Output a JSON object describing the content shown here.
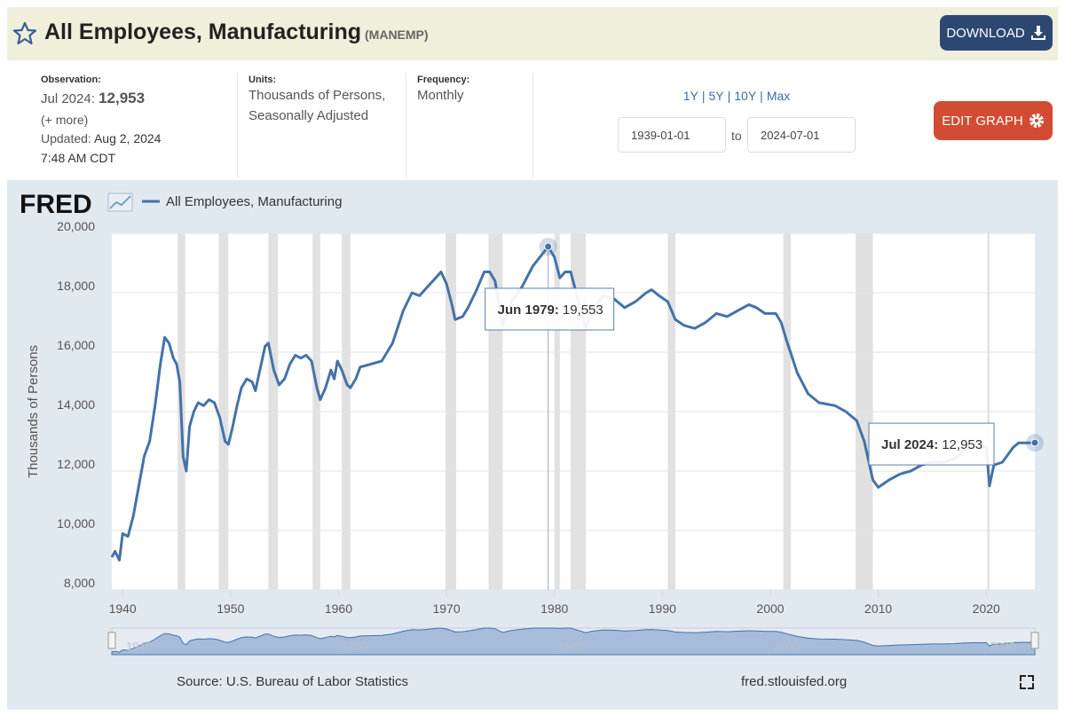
{
  "header": {
    "title": "All Employees, Manufacturing",
    "code": "(MANEMP)",
    "download": "DOWNLOAD"
  },
  "info": {
    "observation": {
      "label": "Observation:",
      "date": "Jul 2024:",
      "value": "12,953",
      "more": "(+ more)"
    },
    "updated": {
      "label": "Updated:",
      "date": "Aug 2, 2024",
      "time": "7:48 AM CDT"
    },
    "units": {
      "label": "Units:",
      "lines": [
        "Thousands of Persons,",
        "Seasonally Adjusted"
      ]
    },
    "frequency": {
      "label": "Frequency:",
      "value": "Monthly"
    }
  },
  "controls": {
    "ranges": [
      "1Y",
      "5Y",
      "10Y",
      "Max"
    ],
    "separator": "|",
    "start": "1939-01-01",
    "to": "to",
    "end": "2024-07-01",
    "edit": "EDIT GRAPH"
  },
  "footer": {
    "source": "Source: U.S. Bureau of Labor Statistics",
    "site": "fred.stlouisfed.org"
  },
  "chart_data": {
    "type": "line",
    "logo": "FRED",
    "y_label": "Thousands of Persons",
    "xlim": [
      1939,
      2024.5
    ],
    "xticks": [
      1940,
      1950,
      1960,
      1970,
      1980,
      1990,
      2000,
      2010,
      2020
    ],
    "ylim": [
      8000,
      20000
    ],
    "yticks": [
      {
        "value": 8000,
        "label": "8,000"
      },
      {
        "value": 10000,
        "label": "10,000"
      },
      {
        "value": 12000,
        "label": "12,000"
      },
      {
        "value": 14000,
        "label": "14,000"
      },
      {
        "value": 16000,
        "label": "16,000"
      },
      {
        "value": 18000,
        "label": "18,000"
      },
      {
        "value": 20000,
        "label": "20,000"
      }
    ],
    "grid": true,
    "recessions": [
      [
        1945.1,
        1945.8
      ],
      [
        1948.9,
        1949.8
      ],
      [
        1953.5,
        1954.4
      ],
      [
        1957.6,
        1958.3
      ],
      [
        1960.3,
        1961.1
      ],
      [
        1969.9,
        1970.9
      ],
      [
        1973.9,
        1975.2
      ],
      [
        1980.0,
        1980.5
      ],
      [
        1981.5,
        1982.9
      ],
      [
        1990.5,
        1991.2
      ],
      [
        2001.2,
        2001.9
      ],
      [
        2007.9,
        2009.5
      ],
      [
        2020.1,
        2020.3
      ]
    ],
    "x": [
      1939.0,
      1939.3,
      1939.7,
      1940.0,
      1940.5,
      1941.0,
      1941.5,
      1942.0,
      1942.5,
      1943.0,
      1943.5,
      1943.9,
      1944.3,
      1944.7,
      1945.0,
      1945.3,
      1945.6,
      1945.9,
      1946.2,
      1946.6,
      1947.0,
      1947.5,
      1948.0,
      1948.5,
      1949.0,
      1949.5,
      1949.8,
      1950.2,
      1950.6,
      1951.0,
      1951.5,
      1952.0,
      1952.3,
      1952.6,
      1953.2,
      1953.5,
      1954.0,
      1954.5,
      1955.0,
      1955.5,
      1956.0,
      1956.5,
      1957.0,
      1957.5,
      1958.0,
      1958.3,
      1958.8,
      1959.3,
      1959.6,
      1959.9,
      1960.3,
      1960.8,
      1961.1,
      1961.6,
      1962.0,
      1963.0,
      1964.0,
      1965.0,
      1966.0,
      1966.8,
      1967.5,
      1968.0,
      1969.0,
      1969.5,
      1970.0,
      1970.5,
      1970.8,
      1971.5,
      1972.0,
      1972.8,
      1973.5,
      1974.0,
      1974.5,
      1975.2,
      1976.0,
      1977.0,
      1978.0,
      1979.42,
      1980.0,
      1980.5,
      1981.0,
      1981.5,
      1982.9,
      1983.5,
      1984.5,
      1985.5,
      1986.5,
      1987.5,
      1988.5,
      1989.0,
      1989.7,
      1990.5,
      1991.2,
      1992.0,
      1993.0,
      1994.0,
      1995.0,
      1996.0,
      1997.0,
      1998.0,
      1998.7,
      1999.5,
      2000.5,
      2001.0,
      2001.5,
      2002.5,
      2003.5,
      2004.5,
      2006.0,
      2007.0,
      2008.0,
      2008.7,
      2009.5,
      2010.0,
      2011.0,
      2012.0,
      2013.0,
      2014.0,
      2015.0,
      2016.0,
      2017.0,
      2018.0,
      2019.0,
      2020.0,
      2020.3,
      2020.7,
      2021.5,
      2022.5,
      2023.0,
      2024.0,
      2024.5
    ],
    "series": [
      {
        "name": "All Employees, Manufacturing",
        "color": "#4472a8",
        "values": [
          9100,
          9300,
          9000,
          9900,
          9800,
          10500,
          11500,
          12500,
          13000,
          14200,
          15600,
          16500,
          16300,
          15800,
          15600,
          15000,
          12500,
          12000,
          13500,
          14000,
          14300,
          14200,
          14400,
          14300,
          13800,
          13000,
          12900,
          13500,
          14200,
          14800,
          15100,
          15000,
          14700,
          15200,
          16200,
          16300,
          15400,
          14900,
          15100,
          15600,
          15900,
          15800,
          15900,
          15700,
          14800,
          14400,
          14800,
          15400,
          15100,
          15700,
          15400,
          14900,
          14800,
          15100,
          15500,
          15600,
          15700,
          16300,
          17400,
          18000,
          17900,
          18100,
          18500,
          18700,
          18300,
          17600,
          17100,
          17200,
          17500,
          18100,
          18700,
          18700,
          18400,
          16900,
          17700,
          18200,
          18900,
          19553,
          19200,
          18500,
          18700,
          18700,
          16800,
          17400,
          17900,
          17800,
          17500,
          17700,
          18000,
          18100,
          17900,
          17700,
          17100,
          16900,
          16800,
          17000,
          17300,
          17200,
          17400,
          17600,
          17500,
          17300,
          17300,
          17000,
          16400,
          15300,
          14600,
          14300,
          14200,
          14000,
          13700,
          13000,
          11700,
          11450,
          11700,
          11900,
          12000,
          12200,
          12300,
          12300,
          12400,
          12700,
          12800,
          12800,
          11500,
          12200,
          12300,
          12800,
          12950,
          12950,
          12953
        ]
      }
    ],
    "annotations": [
      {
        "date": "Jun 1979:",
        "x": 1979.42,
        "value": 19553,
        "value_label": "19,553"
      },
      {
        "date": "Jul 2024:",
        "x": 2024.5,
        "value": 12953,
        "value_label": "12,953"
      }
    ]
  }
}
